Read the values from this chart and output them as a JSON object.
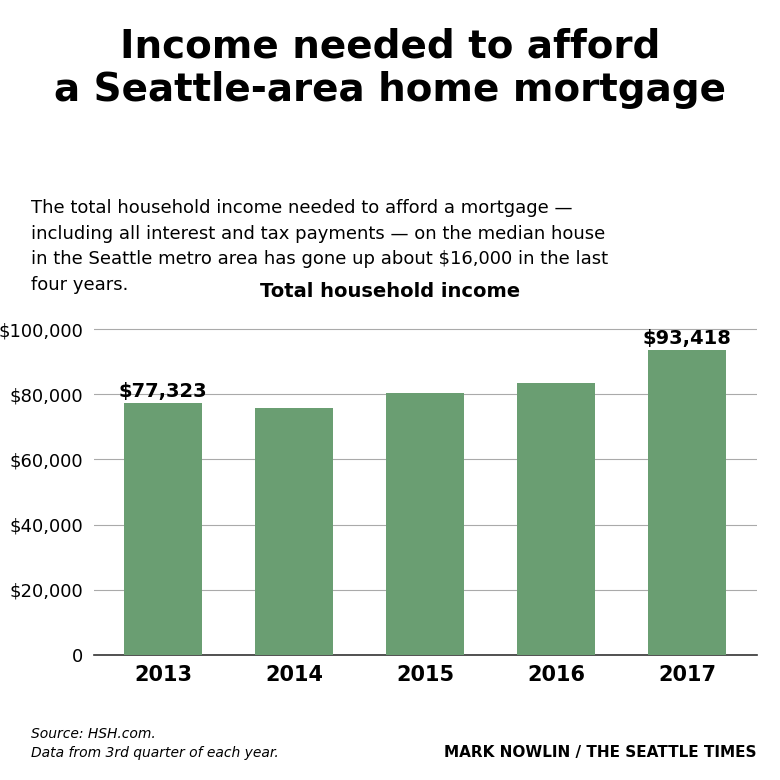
{
  "title": "Income needed to afford\na Seattle-area home mortgage",
  "subtitle": "The total household income needed to afford a mortgage —\nincluding all interest and tax payments — on the median house\nin the Seattle metro area has gone up about $16,000 in the last\nfour years.",
  "chart_title": "Total household income",
  "years": [
    "2013",
    "2014",
    "2015",
    "2016",
    "2017"
  ],
  "values": [
    77323,
    75800,
    80300,
    83500,
    93418
  ],
  "bar_color": "#6a9e72",
  "labeled_bars": {
    "2013": "$77,323",
    "2017": "$93,418"
  },
  "ylim": [
    0,
    110000
  ],
  "yticks": [
    0,
    20000,
    40000,
    60000,
    80000,
    100000
  ],
  "source_text": "Source: HSH.com.\nData from 3rd quarter of each year.",
  "credit_text": "MARK NOWLIN / THE SEATTLE TIMES",
  "background_color": "#ffffff",
  "grid_color": "#aaaaaa",
  "title_fontsize": 28,
  "subtitle_fontsize": 13,
  "chart_title_fontsize": 14,
  "bar_label_fontsize": 14,
  "tick_fontsize": 13,
  "xtick_fontsize": 15,
  "source_fontsize": 10,
  "credit_fontsize": 11
}
